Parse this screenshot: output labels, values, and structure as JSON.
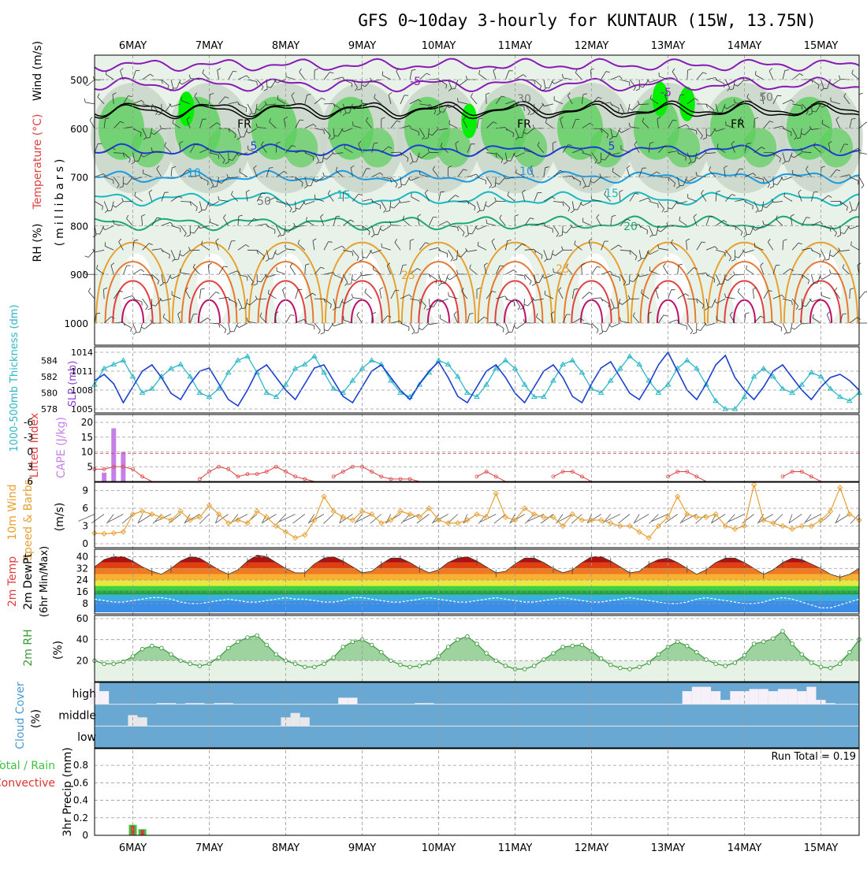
{
  "title": "GFS 0~10day 3-hourly for KUNTAUR (15W, 13.75N)",
  "dates": [
    "6MAY",
    "7MAY",
    "8MAY",
    "9MAY",
    "10MAY",
    "11MAY",
    "12MAY",
    "13MAY",
    "14MAY",
    "15MAY"
  ],
  "colors": {
    "grid": "#9a9a9a",
    "rh_light": "#e8f2e8",
    "rh_mid": "#c9d6c9",
    "rh_green": "#5ccf5c",
    "rh_bright": "#00f000",
    "cloud": "#6aa8d4",
    "slp": "#1a3fd0",
    "thick": "#2ab8c8",
    "lifted": "#e04040",
    "cape": "#c77fe8",
    "wind": "#e8a030",
    "rh2m": "#3a9a3a",
    "precip_total": "#40c040",
    "precip_conv": "#e03030"
  },
  "panels": {
    "upper": {
      "ylabel_rh": "RH (%)",
      "ylabel_temp": "Temperature (°C)",
      "ylabel_wind": "Wind (m/s)",
      "ylabel_mb": "(millibars)",
      "yticks": [
        "500",
        "600",
        "700",
        "800",
        "900",
        "1000"
      ],
      "contour_labels": {
        "t_m5": "-5",
        "t5": "5",
        "t10": "10",
        "t15": "15",
        "t20": "20",
        "t25": "25",
        "fr": "FR",
        "rh30": "30",
        "rh50": "50"
      }
    },
    "slp": {
      "ylabel_thick": "1000-500mb Thickness (dm)",
      "ylabel_slp": "SLP (mb)",
      "yticks_left": [
        "584",
        "582",
        "580",
        "578"
      ],
      "yticks_right": [
        "1014",
        "1011",
        "1008",
        "1005"
      ]
    },
    "li": {
      "ylabel_li": "Lifted Index",
      "ylabel_cape": "CAPE (J/kg)",
      "yticks_left": [
        "-6",
        "-3",
        "0",
        "3",
        "6"
      ],
      "yticks_right": [
        "20",
        "15",
        "10",
        "5"
      ]
    },
    "wind10": {
      "ylabel_a": "10m Wind",
      "ylabel_b": "Speed & Barbs",
      "ylabel_unit": "(m/s)",
      "yticks": [
        "9",
        "6",
        "3",
        "0"
      ]
    },
    "temp2m": {
      "ylabel_a": "2m Temp",
      "ylabel_b": "2m DewPt",
      "ylabel_c": "(6hr Min/Max)",
      "yticks": [
        "40",
        "32",
        "24",
        "16",
        "8"
      ]
    },
    "rh2m": {
      "ylabel": "2m RH",
      "unit": "(%)",
      "yticks": [
        "60",
        "40",
        "20"
      ]
    },
    "cloud": {
      "ylabel": "Cloud Cover",
      "unit": "(%)",
      "levels": [
        "high",
        "middle",
        "low"
      ]
    },
    "precip": {
      "ylabel_a": "Total / Rain",
      "ylabel_b": "Convective",
      "ylabel_c": "3hr Precip (mm)",
      "run_total": "Run Total = 0.19",
      "yticks": [
        "0.8",
        "0.6",
        "0.4",
        "0.2",
        "0"
      ]
    }
  },
  "chart_data": {
    "type": "line",
    "x_range_days": [
      "5MAY 12Z",
      "15MAY 12Z"
    ],
    "step_hours": 3,
    "slp_mb": [
      1009.5,
      1010.5,
      1009,
      1006,
      1008.5,
      1011,
      1012,
      1010,
      1007.5,
      1006.5,
      1009,
      1011,
      1011.5,
      1009,
      1006.5,
      1005.5,
      1008,
      1011,
      1012,
      1010,
      1008,
      1006.5,
      1009,
      1011.5,
      1012,
      1009.5,
      1007,
      1006,
      1008.5,
      1011,
      1012,
      1010,
      1008,
      1006.5,
      1009,
      1011,
      1012.5,
      1010,
      1007,
      1006,
      1008.5,
      1011,
      1012,
      1010,
      1007.5,
      1006,
      1008.5,
      1011,
      1012,
      1010,
      1007,
      1006,
      1009,
      1011.5,
      1012.5,
      1010,
      1007.5,
      1006.5,
      1009,
      1012,
      1014,
      1011,
      1008,
      1006.5,
      1009,
      1012,
      1013.5,
      1010,
      1008,
      1006.5,
      1008.5,
      1011,
      1012,
      1010,
      1008,
      1006.5,
      1008.5,
      1010,
      1010.5,
      1009.5,
      1008
    ],
    "thickness_dm": [
      581,
      583,
      583.5,
      584,
      582,
      580,
      580.5,
      582,
      583,
      583.5,
      582,
      580,
      579.5,
      580.5,
      582.5,
      584,
      584.5,
      582.5,
      580,
      579.5,
      581,
      583,
      583.5,
      584.5,
      582.5,
      580.5,
      580,
      581.5,
      583,
      584,
      583.5,
      581.5,
      580,
      579.5,
      581,
      582.5,
      584,
      583.5,
      582,
      580,
      579.5,
      581,
      583,
      584,
      583,
      581,
      579.5,
      579.5,
      581.5,
      583.5,
      584,
      582.5,
      580.5,
      580,
      581.5,
      583,
      584.5,
      583.5,
      581.5,
      580,
      581,
      583,
      584,
      583,
      581,
      579,
      578,
      578,
      579.5,
      582,
      583,
      582,
      580.5,
      580,
      581,
      582.5,
      582,
      580.5,
      579.5,
      579,
      580
    ],
    "lifted_index": [
      3.5,
      3.5,
      3,
      3,
      3.5,
      5,
      6,
      6,
      6,
      6,
      6,
      5.5,
      4,
      3,
      3.5,
      5,
      4.5,
      4.5,
      4,
      3,
      4,
      5,
      5.5,
      6,
      6,
      5,
      4,
      3,
      3,
      4,
      5,
      5.5,
      5.5,
      5.5,
      6,
      6,
      6,
      6,
      6,
      6,
      5,
      4,
      5,
      6,
      6,
      6,
      6,
      6,
      5,
      4,
      4,
      5,
      6,
      6,
      6,
      6,
      6,
      6,
      6,
      6,
      5,
      4,
      4,
      5,
      6,
      6,
      6,
      6,
      6,
      6,
      6,
      6,
      5,
      4,
      4,
      5,
      6,
      6,
      6,
      6,
      6
    ],
    "cape_jkg": [
      0,
      3,
      18,
      10,
      0,
      0,
      0,
      0,
      0,
      0,
      0,
      0,
      0,
      0,
      0,
      0,
      0,
      0,
      0,
      0,
      0,
      0,
      0,
      0,
      0,
      0,
      0,
      0,
      0,
      0,
      0,
      0,
      0,
      0,
      0,
      0,
      0,
      0,
      0,
      0,
      0,
      0,
      0,
      0,
      0,
      0,
      0,
      0,
      0,
      0,
      0,
      0,
      0,
      0,
      0,
      0,
      0,
      0,
      0,
      0,
      0,
      0,
      0,
      0,
      0,
      0,
      0,
      0,
      0,
      0,
      0,
      0,
      0,
      0,
      0,
      0,
      0,
      0,
      0,
      0,
      0
    ],
    "wind10_ms": [
      1.8,
      1.7,
      1.8,
      2,
      5,
      5.5,
      5,
      4.5,
      4,
      5.5,
      4,
      4.5,
      6.5,
      5,
      3.5,
      4,
      3.5,
      5.5,
      4.5,
      3,
      2,
      1,
      1.5,
      4,
      8,
      5.5,
      4.5,
      4,
      5.5,
      5,
      3.5,
      4,
      5.5,
      5,
      4.5,
      6,
      4,
      3.5,
      3.5,
      4,
      5,
      4.5,
      8.5,
      4.5,
      4,
      6,
      5,
      4.5,
      4.5,
      3,
      5,
      4,
      4,
      4,
      3.5,
      3,
      3,
      2,
      1,
      3,
      4.5,
      8,
      5,
      4.5,
      4.5,
      5,
      3,
      2.5,
      3,
      10,
      4,
      3.5,
      3,
      2.5,
      3,
      3,
      4,
      5.5,
      9.5,
      5,
      4
    ],
    "temp2m_c": [
      33,
      38,
      40,
      40,
      37,
      33,
      30,
      28,
      32,
      37,
      40,
      39,
      35,
      31,
      28,
      31,
      37,
      41,
      40,
      36,
      32,
      29,
      29,
      35,
      39,
      40,
      37,
      33,
      29,
      30,
      35,
      39,
      39,
      36,
      32,
      29,
      31,
      36,
      39,
      40,
      37,
      33,
      29,
      30,
      35,
      39,
      39,
      36,
      32,
      29,
      31,
      36,
      40,
      40,
      37,
      33,
      29,
      30,
      35,
      38,
      39,
      36,
      32,
      28,
      31,
      36,
      39,
      39,
      36,
      32,
      28,
      31,
      36,
      39,
      38,
      35,
      32,
      28,
      26,
      28,
      32
    ],
    "dewpt2m_c": [
      11,
      10,
      9,
      9,
      10,
      11,
      12,
      12,
      11,
      9,
      8,
      8,
      9,
      10,
      11,
      10,
      9,
      9,
      10,
      11,
      12,
      11,
      11,
      10,
      9,
      9,
      10,
      12,
      12,
      11,
      10,
      9,
      9,
      10,
      11,
      12,
      11,
      10,
      9,
      9,
      10,
      11,
      12,
      11,
      10,
      9,
      9,
      10,
      11,
      12,
      11,
      10,
      9,
      9,
      10,
      11,
      12,
      11,
      10,
      9,
      8,
      8,
      9,
      11,
      12,
      11,
      10,
      9,
      8,
      8,
      9,
      11,
      12,
      11,
      9,
      7,
      5,
      5,
      7,
      9,
      11
    ],
    "rh2m_pct": [
      20,
      17,
      17,
      19,
      24,
      31,
      34,
      32,
      26,
      20,
      17,
      15,
      17,
      23,
      32,
      38,
      42,
      44,
      35,
      26,
      20,
      17,
      14,
      14,
      17,
      23,
      33,
      38,
      40,
      35,
      28,
      20,
      16,
      14,
      15,
      18,
      24,
      33,
      40,
      43,
      36,
      27,
      20,
      15,
      12,
      12,
      15,
      21,
      27,
      33,
      34,
      35,
      29,
      22,
      16,
      13,
      12,
      14,
      18,
      26,
      33,
      38,
      34,
      28,
      21,
      17,
      15,
      18,
      25,
      36,
      38,
      41,
      48,
      36,
      26,
      18,
      14,
      13,
      17,
      28,
      40
    ],
    "precip_total_mm": [
      0,
      0,
      0,
      0,
      0.12,
      0.07,
      0,
      0,
      0,
      0,
      0,
      0,
      0,
      0,
      0,
      0,
      0,
      0,
      0,
      0,
      0,
      0,
      0,
      0,
      0,
      0,
      0,
      0,
      0,
      0,
      0,
      0,
      0,
      0,
      0,
      0,
      0,
      0,
      0,
      0,
      0,
      0,
      0,
      0,
      0,
      0,
      0,
      0,
      0,
      0,
      0,
      0,
      0,
      0,
      0,
      0,
      0,
      0,
      0,
      0,
      0,
      0,
      0,
      0,
      0,
      0,
      0,
      0,
      0,
      0,
      0,
      0,
      0,
      0,
      0,
      0,
      0,
      0,
      0,
      0,
      0
    ],
    "precip_conv_mm": [
      0,
      0,
      0,
      0,
      0.11,
      0.06,
      0,
      0,
      0,
      0,
      0,
      0,
      0,
      0,
      0,
      0,
      0,
      0,
      0,
      0,
      0,
      0,
      0,
      0,
      0,
      0,
      0,
      0,
      0,
      0,
      0,
      0,
      0,
      0,
      0,
      0,
      0,
      0,
      0,
      0,
      0,
      0,
      0,
      0,
      0,
      0,
      0,
      0,
      0,
      0,
      0,
      0,
      0,
      0,
      0,
      0,
      0,
      0,
      0,
      0,
      0,
      0,
      0,
      0,
      0,
      0,
      0,
      0,
      0,
      0,
      0,
      0,
      0,
      0,
      0,
      0,
      0,
      0,
      0,
      0,
      0
    ],
    "cloud_high_pct": [
      100,
      60,
      0,
      0,
      0,
      0,
      0,
      5,
      5,
      0,
      5,
      5,
      0,
      5,
      5,
      0,
      0,
      0,
      0,
      0,
      0,
      0,
      0,
      0,
      0,
      0,
      30,
      30,
      0,
      0,
      0,
      0,
      0,
      0,
      5,
      5,
      0,
      0,
      0,
      0,
      0,
      0,
      0,
      0,
      0,
      0,
      0,
      0,
      0,
      0,
      0,
      0,
      0,
      0,
      0,
      0,
      0,
      0,
      0,
      0,
      0,
      0,
      60,
      80,
      80,
      60,
      20,
      60,
      60,
      70,
      70,
      60,
      70,
      70,
      60,
      80,
      20,
      5,
      0,
      0,
      0
    ],
    "cloud_mid_pct": [
      0,
      0,
      0,
      0,
      50,
      40,
      0,
      0,
      0,
      0,
      0,
      0,
      0,
      0,
      0,
      0,
      0,
      0,
      0,
      0,
      40,
      60,
      40,
      0,
      0,
      0,
      0,
      0,
      0,
      0,
      0,
      0,
      0,
      0,
      0,
      0,
      0,
      0,
      0,
      0,
      0,
      0,
      0,
      0,
      0,
      0,
      0,
      0,
      0,
      0,
      0,
      0,
      0,
      0,
      0,
      0,
      0,
      0,
      0,
      0,
      0,
      0,
      0,
      0,
      0,
      0,
      0,
      0,
      0,
      0,
      0,
      0,
      0,
      0,
      0,
      0,
      0,
      0,
      0,
      0,
      0
    ]
  }
}
